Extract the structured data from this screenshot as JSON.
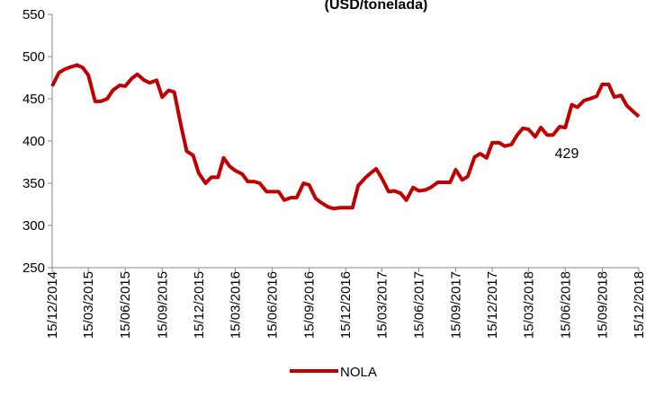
{
  "chart_data": {
    "type": "line",
    "title": "(USD/tonelada)",
    "annotation": "429",
    "x": [
      "15/12/2014",
      "01/01/2015",
      "15/01/2015",
      "01/02/2015",
      "15/02/2015",
      "01/03/2015",
      "15/03/2015",
      "01/04/2015",
      "15/04/2015",
      "01/05/2015",
      "15/05/2015",
      "01/06/2015",
      "15/06/2015",
      "01/07/2015",
      "15/07/2015",
      "01/08/2015",
      "15/08/2015",
      "01/09/2015",
      "15/09/2015",
      "01/10/2015",
      "15/10/2015",
      "01/11/2015",
      "15/11/2015",
      "01/12/2015",
      "15/12/2015",
      "01/01/2016",
      "15/01/2016",
      "01/02/2016",
      "15/02/2016",
      "01/03/2016",
      "15/03/2016",
      "01/04/2016",
      "15/04/2016",
      "01/05/2016",
      "15/05/2016",
      "01/06/2016",
      "15/06/2016",
      "01/07/2016",
      "15/07/2016",
      "01/08/2016",
      "15/08/2016",
      "01/09/2016",
      "15/09/2016",
      "01/10/2016",
      "15/10/2016",
      "01/11/2016",
      "15/11/2016",
      "01/12/2016",
      "15/12/2016",
      "01/01/2017",
      "15/01/2017",
      "01/02/2017",
      "15/02/2017",
      "01/03/2017",
      "15/03/2017",
      "01/04/2017",
      "15/04/2017",
      "01/05/2017",
      "15/05/2017",
      "01/06/2017",
      "15/06/2017",
      "01/07/2017",
      "15/07/2017",
      "01/08/2017",
      "15/08/2017",
      "01/09/2017",
      "15/09/2017",
      "01/10/2017",
      "15/10/2017",
      "01/11/2017",
      "15/11/2017",
      "01/12/2017",
      "15/12/2017",
      "01/01/2018",
      "15/01/2018",
      "01/02/2018",
      "15/02/2018",
      "01/03/2018",
      "15/03/2018",
      "01/04/2018",
      "15/04/2018",
      "01/05/2018",
      "15/05/2018",
      "01/06/2018",
      "15/06/2018",
      "01/07/2018",
      "15/07/2018",
      "01/08/2018",
      "15/08/2018",
      "01/09/2018",
      "15/09/2018",
      "01/10/2018",
      "15/10/2018",
      "01/11/2018",
      "15/11/2018",
      "01/12/2018",
      "15/12/2018"
    ],
    "series": [
      {
        "name": "NOLA",
        "color": "#c00000",
        "values": [
          465,
          481,
          485,
          488,
          490,
          487,
          478,
          447,
          447,
          450,
          460,
          466,
          465,
          474,
          479,
          472,
          469,
          472,
          452,
          460,
          458,
          418,
          388,
          383,
          362,
          350,
          357,
          357,
          380,
          370,
          365,
          361,
          352,
          352,
          350,
          340,
          340,
          340,
          330,
          333,
          333,
          350,
          348,
          332,
          327,
          322,
          320,
          321,
          321,
          321,
          347,
          356,
          362,
          367,
          356,
          340,
          341,
          338,
          330,
          345,
          341,
          342,
          345,
          351,
          351,
          351,
          366,
          354,
          358,
          381,
          385,
          380,
          398,
          398,
          394,
          396,
          407,
          415,
          414,
          405,
          416,
          407,
          407,
          417,
          416,
          443,
          440,
          448,
          450,
          453,
          467,
          467,
          452,
          454,
          442,
          435,
          429
        ]
      }
    ],
    "xlim": [
      "15/12/2014",
      "15/12/2018"
    ],
    "xticks": [
      "15/12/2014",
      "15/03/2015",
      "15/06/2015",
      "15/09/2015",
      "15/12/2015",
      "15/03/2016",
      "15/06/2016",
      "15/09/2016",
      "15/12/2016",
      "15/03/2017",
      "15/06/2017",
      "15/09/2017",
      "15/12/2017",
      "15/03/2018",
      "15/06/2018",
      "15/09/2018",
      "15/12/2018"
    ],
    "ylim": [
      250,
      550
    ],
    "yticks": [
      250,
      300,
      350,
      400,
      450,
      500,
      550
    ],
    "grid": false,
    "legend": "bottom"
  }
}
